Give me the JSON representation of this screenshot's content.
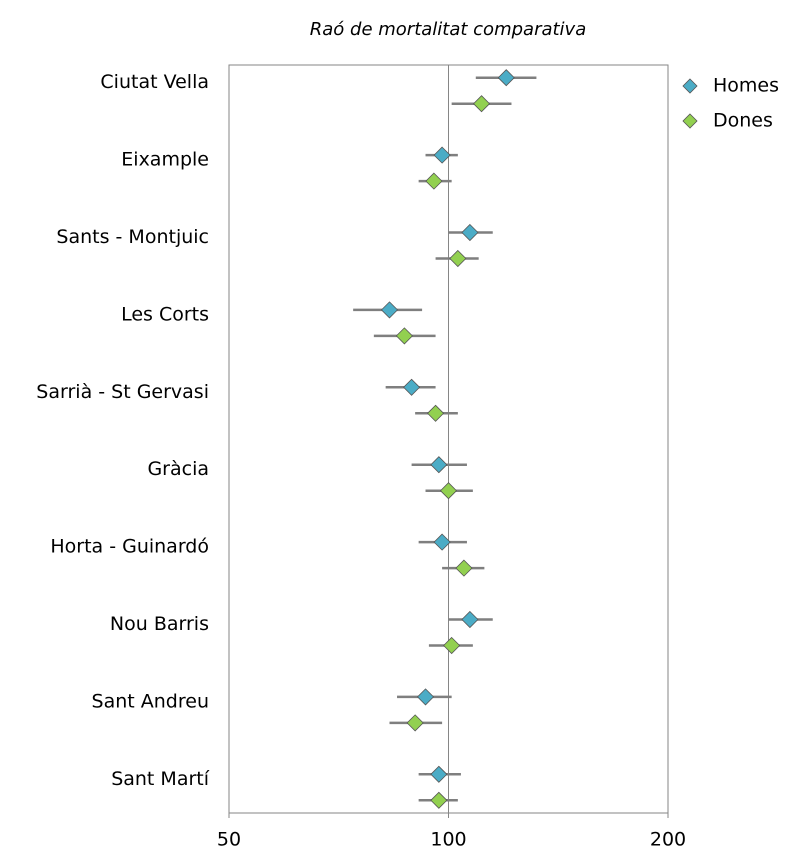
{
  "chart_data": {
    "type": "forest",
    "title": "Raó de mortalitat comparativa",
    "categories": [
      "Ciutat Vella",
      "Eixample",
      "Sants - Montjuic",
      "Les Corts",
      "Sarrià - St Gervasi",
      "Gràcia",
      "Horta - Guinardó",
      "Nou Barris",
      "Sant Andreu",
      "Sant Martí"
    ],
    "series": [
      {
        "name": "Homes",
        "color": "#4bacc6",
        "values": [
          120,
          98,
          107,
          83,
          89,
          97,
          98,
          107,
          93,
          97
        ],
        "lower": [
          109,
          93,
          100,
          74,
          82,
          89,
          91,
          100,
          85,
          91
        ],
        "upper": [
          132,
          103,
          115,
          92,
          96,
          106,
          106,
          115,
          101,
          104
        ]
      },
      {
        "name": "Dones",
        "color": "#92d050",
        "values": [
          111,
          95.5,
          103,
          87,
          96,
          100,
          105,
          101,
          90,
          97
        ],
        "lower": [
          101,
          91,
          96,
          79,
          90,
          93,
          98,
          94,
          83,
          91
        ],
        "upper": [
          122,
          101,
          110,
          96,
          103,
          108,
          112,
          108,
          98,
          103
        ]
      }
    ],
    "xlim": [
      50,
      200
    ],
    "xticks": [
      50,
      100,
      200
    ],
    "log_x": true,
    "reference_line": 100,
    "whisker_color": "#7f7f7f",
    "legend": "right"
  }
}
